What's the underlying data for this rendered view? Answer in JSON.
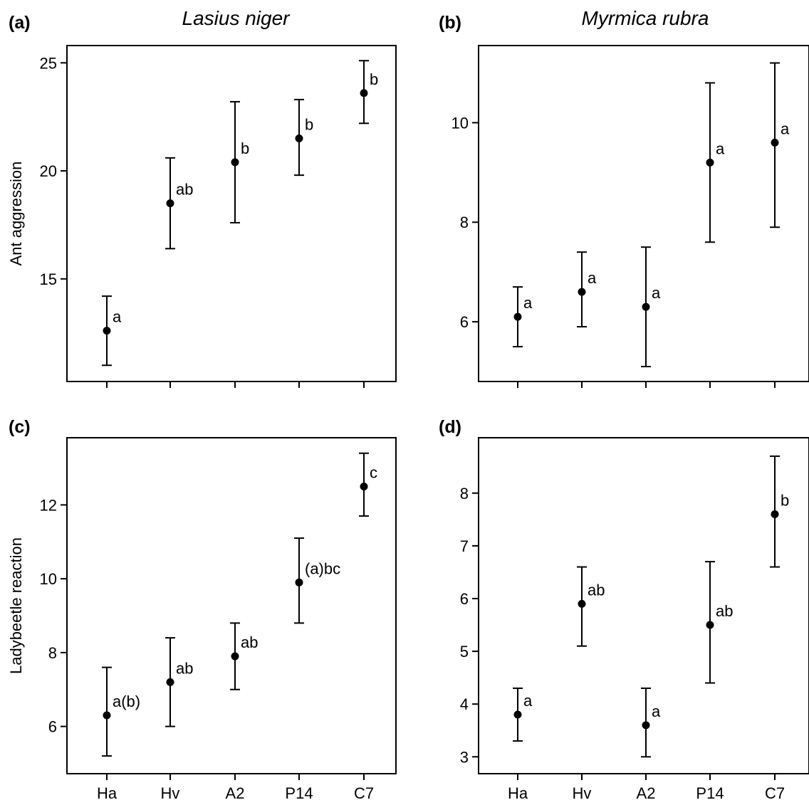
{
  "figure": {
    "col_titles": [
      "Lasius niger",
      "Myrmica rubra"
    ],
    "row_ylabels": [
      "Ant aggression",
      "Ladybeetle reaction"
    ]
  },
  "chart_data": [
    {
      "type": "scatter",
      "panel": "(a)",
      "title": "Lasius niger",
      "ylabel": "Ant aggression",
      "xlabel": "",
      "categories": [
        "Ha",
        "Hv",
        "A2",
        "P14",
        "C7"
      ],
      "values": [
        12.6,
        18.5,
        20.4,
        21.5,
        23.6
      ],
      "lower": [
        11.0,
        16.4,
        17.6,
        19.8,
        22.2
      ],
      "upper": [
        14.2,
        20.6,
        23.2,
        23.3,
        25.1
      ],
      "letters": [
        "a",
        "ab",
        "b",
        "b",
        "b"
      ],
      "yticks": [
        15,
        20,
        25
      ],
      "ylim": [
        10.25,
        25.8
      ],
      "show_category_labels": false
    },
    {
      "type": "scatter",
      "panel": "(b)",
      "title": "Myrmica rubra",
      "ylabel": "",
      "xlabel": "",
      "categories": [
        "Ha",
        "Hv",
        "A2",
        "P14",
        "C7"
      ],
      "values": [
        6.1,
        6.6,
        6.3,
        9.2,
        9.6
      ],
      "lower": [
        5.5,
        5.9,
        5.1,
        7.6,
        7.9
      ],
      "upper": [
        6.7,
        7.4,
        7.5,
        10.8,
        11.2
      ],
      "letters": [
        "a",
        "a",
        "a",
        "a",
        "a"
      ],
      "yticks": [
        6,
        8,
        10
      ],
      "ylim": [
        4.8,
        11.55
      ],
      "show_category_labels": false
    },
    {
      "type": "scatter",
      "panel": "(c)",
      "title": "",
      "ylabel": "Ladybeetle reaction",
      "xlabel": "",
      "categories": [
        "Ha",
        "Hv",
        "A2",
        "P14",
        "C7"
      ],
      "values": [
        6.3,
        7.2,
        7.9,
        9.9,
        12.5
      ],
      "lower": [
        5.2,
        6.0,
        7.0,
        8.8,
        11.7
      ],
      "upper": [
        7.6,
        8.4,
        8.8,
        11.1,
        13.4
      ],
      "letters": [
        "a(b)",
        "ab",
        "ab",
        "(a)bc",
        "c"
      ],
      "yticks": [
        6,
        8,
        10,
        12
      ],
      "ylim": [
        4.72,
        13.82
      ],
      "show_category_labels": true
    },
    {
      "type": "scatter",
      "panel": "(d)",
      "title": "",
      "ylabel": "",
      "xlabel": "",
      "categories": [
        "Ha",
        "Hv",
        "A2",
        "P14",
        "C7"
      ],
      "values": [
        3.8,
        5.9,
        3.6,
        5.5,
        7.6
      ],
      "lower": [
        3.3,
        5.1,
        3.0,
        4.4,
        6.6
      ],
      "upper": [
        4.3,
        6.6,
        4.3,
        6.7,
        8.7
      ],
      "letters": [
        "a",
        "ab",
        "a",
        "ab",
        "b"
      ],
      "yticks": [
        3,
        4,
        5,
        6,
        7,
        8
      ],
      "ylim": [
        2.68,
        9.05
      ],
      "show_category_labels": true
    }
  ]
}
